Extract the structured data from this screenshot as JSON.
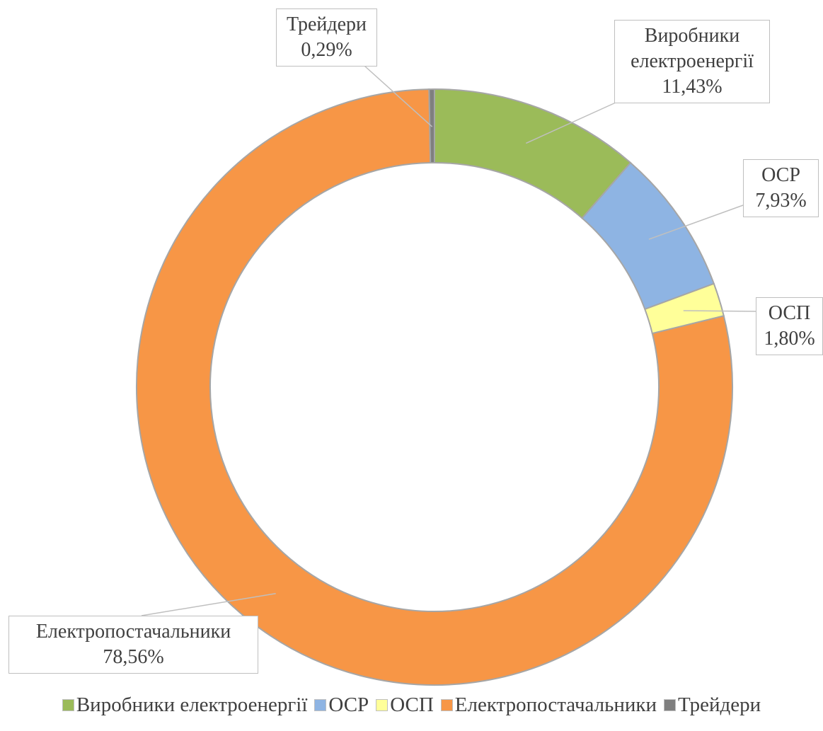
{
  "chart_data": {
    "type": "donut",
    "categories": [
      "Виробники електроенергії",
      "ОСР",
      "ОСП",
      "Електропостачальники",
      "Трейдери"
    ],
    "values": [
      11.43,
      7.93,
      1.8,
      78.56,
      0.29
    ],
    "value_labels": [
      "11,43%",
      "7,93%",
      "1,80%",
      "78,56%",
      "0,29%"
    ],
    "colors": [
      "#9bbb59",
      "#8eb4e3",
      "#ffff99",
      "#f79646",
      "#7f7f7f"
    ],
    "legend": "bottom"
  }
}
